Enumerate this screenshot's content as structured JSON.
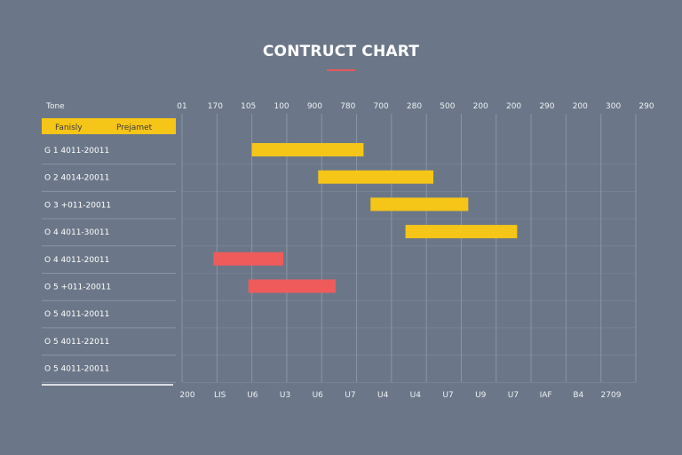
{
  "chart_data": {
    "type": "bar",
    "title": "CONTRUCT CHART",
    "header": {
      "row_label": "Tone",
      "col1": "Fanisly",
      "col2": "Prejamet"
    },
    "top_ticks": [
      "01",
      "170",
      "105",
      "100",
      "900",
      "780",
      "700",
      "280",
      "500",
      "200",
      "200",
      "290",
      "200",
      "300",
      "290"
    ],
    "bottom_ticks": [
      "200",
      "LIS",
      "U6",
      "U3",
      "U6",
      "U7",
      "U4",
      "U4",
      "U7",
      "U9",
      "U7",
      "IAF",
      "B4",
      "2709"
    ],
    "rows": [
      {
        "label": "G 1  4011-20011",
        "start": 2,
        "end": 5.2,
        "color": "#f5c518"
      },
      {
        "label": "O 2  4014-20011",
        "start": 3.9,
        "end": 7.2,
        "color": "#f5c518"
      },
      {
        "label": "O 3  +011-20011",
        "start": 5.4,
        "end": 8.2,
        "color": "#f5c518"
      },
      {
        "label": "O 4  4011-30011",
        "start": 6.4,
        "end": 9.6,
        "color": "#f5c518"
      },
      {
        "label": "O 4  4011-20011",
        "start": 0.9,
        "end": 2.9,
        "color": "#ef5b5b"
      },
      {
        "label": "O 5  +011-20011",
        "start": 1.9,
        "end": 4.4,
        "color": "#ef5b5b"
      },
      {
        "label": "O 5  4011-20011",
        "start": null,
        "end": null,
        "color": "#f5c518"
      },
      {
        "label": "O 5  4011-22011",
        "start": null,
        "end": null,
        "color": "#f5c518"
      },
      {
        "label": "O 5  4011-20011",
        "start": null,
        "end": null,
        "color": "#f5c518"
      }
    ],
    "xlim": [
      0,
      13
    ],
    "grid": true,
    "colors": {
      "background": "#6b7788",
      "accent_yellow": "#f5c518",
      "accent_red": "#ef5b5b",
      "grid": "#8a95a4"
    }
  }
}
